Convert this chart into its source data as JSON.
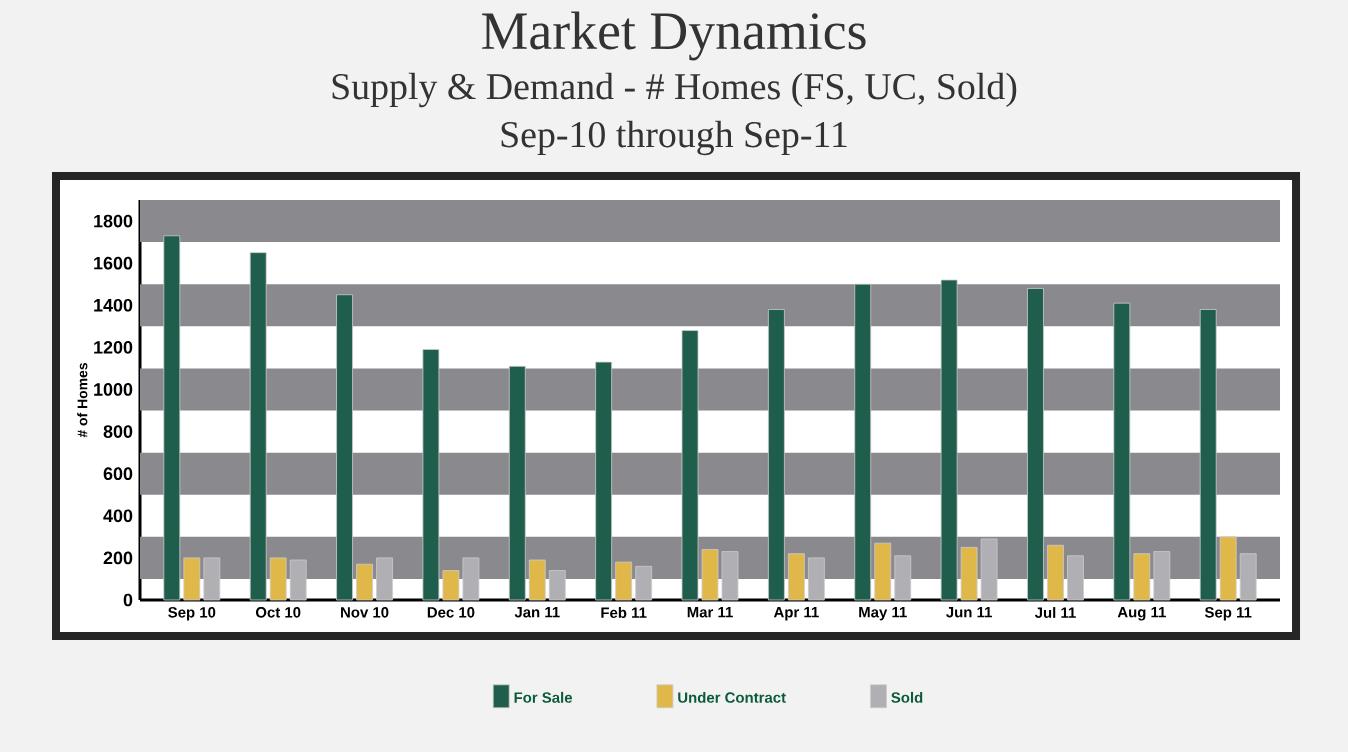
{
  "chart_data": {
    "type": "bar",
    "title": "Market Dynamics",
    "subtitle": "Supply & Demand - # Homes (FS, UC, Sold)",
    "annotations": [
      "Sep-10 through Sep-11"
    ],
    "ylabel": "# of Homes",
    "categories": [
      "Sep 10",
      "Oct 10",
      "Nov 10",
      "Dec 10",
      "Jan 11",
      "Feb 11",
      "Mar 11",
      "Apr 11",
      "May 11",
      "Jun 11",
      "Jul 11",
      "Aug 11",
      "Sep 11"
    ],
    "series": [
      {
        "name": "For Sale",
        "color": "#1f5e4c",
        "values": [
          1730,
          1650,
          1450,
          1190,
          1110,
          1130,
          1280,
          1380,
          1500,
          1520,
          1480,
          1410,
          1380
        ]
      },
      {
        "name": "Under Contract",
        "color": "#e0b84a",
        "values": [
          200,
          200,
          170,
          140,
          190,
          180,
          240,
          220,
          270,
          250,
          260,
          220,
          300
        ]
      },
      {
        "name": "Sold",
        "color": "#b0b0b4",
        "values": [
          200,
          190,
          200,
          200,
          140,
          160,
          230,
          200,
          210,
          290,
          210,
          230,
          220
        ]
      }
    ],
    "ylim": [
      0,
      1900
    ],
    "yticks": [
      0,
      200,
      400,
      600,
      800,
      1000,
      1200,
      1400,
      1600,
      1800
    ],
    "bands": [
      {
        "axis": "y",
        "from": 100,
        "to": 300,
        "color": "#8a8a8e"
      },
      {
        "axis": "y",
        "from": 500,
        "to": 700,
        "color": "#8a8a8e"
      },
      {
        "axis": "y",
        "from": 900,
        "to": 1100,
        "color": "#8a8a8e"
      },
      {
        "axis": "y",
        "from": 1300,
        "to": 1500,
        "color": "#8a8a8e"
      },
      {
        "axis": "y",
        "from": 1700,
        "to": 1900,
        "color": "#8a8a8e"
      }
    ],
    "legend": "bottom"
  }
}
